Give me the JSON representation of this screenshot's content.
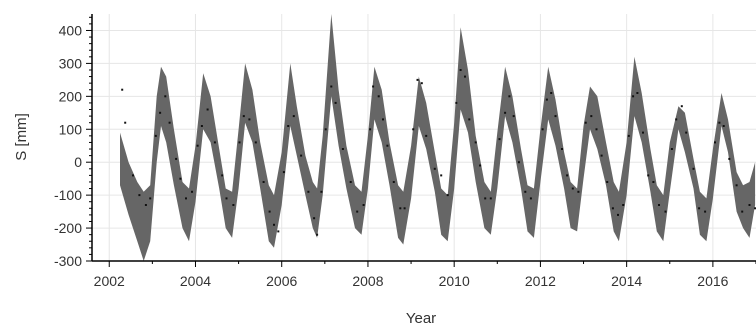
{
  "chart_data": {
    "type": "area",
    "xlabel": "Year",
    "ylabel": "S [mm]",
    "xlim": [
      2001.6,
      2017.0
    ],
    "ylim": [
      -300,
      450
    ],
    "x_ticks": [
      2002,
      2004,
      2006,
      2008,
      2010,
      2012,
      2014,
      2016
    ],
    "x_tick_labels": [
      "2002",
      "2004",
      "2006",
      "2008",
      "2010",
      "2012",
      "2014",
      "2016"
    ],
    "y_ticks": [
      -300,
      -200,
      -100,
      0,
      100,
      200,
      300,
      400
    ],
    "y_tick_labels": [
      "-300",
      "-200",
      "-100",
      "0",
      "100",
      "200",
      "300",
      "400"
    ],
    "grid": true,
    "colors": {
      "band": "#666666",
      "points": "#111111",
      "grid": "#e6e6e6",
      "axis": "#000000"
    },
    "band": [
      {
        "x": 2002.25,
        "low": -70,
        "high": 90
      },
      {
        "x": 2002.45,
        "low": -160,
        "high": 0
      },
      {
        "x": 2002.65,
        "low": -240,
        "high": -60
      },
      {
        "x": 2002.8,
        "low": -300,
        "high": -90
      },
      {
        "x": 2002.95,
        "low": -240,
        "high": -70
      },
      {
        "x": 2003.1,
        "low": 0,
        "high": 200
      },
      {
        "x": 2003.2,
        "low": 110,
        "high": 290
      },
      {
        "x": 2003.32,
        "low": 60,
        "high": 260
      },
      {
        "x": 2003.5,
        "low": -70,
        "high": 100
      },
      {
        "x": 2003.7,
        "low": -200,
        "high": -60
      },
      {
        "x": 2003.85,
        "low": -240,
        "high": -80
      },
      {
        "x": 2004.0,
        "low": -120,
        "high": 50
      },
      {
        "x": 2004.18,
        "low": 100,
        "high": 270
      },
      {
        "x": 2004.35,
        "low": 60,
        "high": 200
      },
      {
        "x": 2004.55,
        "low": -80,
        "high": 40
      },
      {
        "x": 2004.7,
        "low": -200,
        "high": -80
      },
      {
        "x": 2004.85,
        "low": -230,
        "high": -90
      },
      {
        "x": 2005.0,
        "low": -80,
        "high": 100
      },
      {
        "x": 2005.15,
        "low": 120,
        "high": 300
      },
      {
        "x": 2005.32,
        "low": 60,
        "high": 220
      },
      {
        "x": 2005.5,
        "low": -80,
        "high": 60
      },
      {
        "x": 2005.7,
        "low": -240,
        "high": -70
      },
      {
        "x": 2005.82,
        "low": -260,
        "high": -100
      },
      {
        "x": 2006.0,
        "low": -130,
        "high": 30
      },
      {
        "x": 2006.2,
        "low": 110,
        "high": 300
      },
      {
        "x": 2006.35,
        "low": 20,
        "high": 170
      },
      {
        "x": 2006.55,
        "low": -100,
        "high": 20
      },
      {
        "x": 2006.72,
        "low": -200,
        "high": -60
      },
      {
        "x": 2006.82,
        "low": -230,
        "high": -80
      },
      {
        "x": 2006.95,
        "low": -100,
        "high": 80
      },
      {
        "x": 2007.15,
        "low": 200,
        "high": 450
      },
      {
        "x": 2007.32,
        "low": 50,
        "high": 220
      },
      {
        "x": 2007.5,
        "low": -80,
        "high": 50
      },
      {
        "x": 2007.7,
        "low": -200,
        "high": -70
      },
      {
        "x": 2007.85,
        "low": -220,
        "high": -90
      },
      {
        "x": 2008.0,
        "low": -80,
        "high": 80
      },
      {
        "x": 2008.15,
        "low": 130,
        "high": 290
      },
      {
        "x": 2008.32,
        "low": 60,
        "high": 220
      },
      {
        "x": 2008.5,
        "low": -70,
        "high": 60
      },
      {
        "x": 2008.7,
        "low": -230,
        "high": -70
      },
      {
        "x": 2008.82,
        "low": -250,
        "high": -90
      },
      {
        "x": 2009.0,
        "low": -110,
        "high": 50
      },
      {
        "x": 2009.18,
        "low": 110,
        "high": 260
      },
      {
        "x": 2009.35,
        "low": 40,
        "high": 180
      },
      {
        "x": 2009.55,
        "low": -90,
        "high": 30
      },
      {
        "x": 2009.7,
        "low": -220,
        "high": -80
      },
      {
        "x": 2009.85,
        "low": -240,
        "high": -100
      },
      {
        "x": 2010.0,
        "low": -80,
        "high": 120
      },
      {
        "x": 2010.15,
        "low": 160,
        "high": 410
      },
      {
        "x": 2010.32,
        "low": 90,
        "high": 280
      },
      {
        "x": 2010.5,
        "low": -60,
        "high": 80
      },
      {
        "x": 2010.7,
        "low": -200,
        "high": -60
      },
      {
        "x": 2010.85,
        "low": -220,
        "high": -90
      },
      {
        "x": 2011.0,
        "low": -80,
        "high": 90
      },
      {
        "x": 2011.18,
        "low": 140,
        "high": 290
      },
      {
        "x": 2011.35,
        "low": 60,
        "high": 200
      },
      {
        "x": 2011.55,
        "low": -80,
        "high": 40
      },
      {
        "x": 2011.7,
        "low": -210,
        "high": -70
      },
      {
        "x": 2011.85,
        "low": -230,
        "high": -80
      },
      {
        "x": 2012.0,
        "low": -60,
        "high": 100
      },
      {
        "x": 2012.18,
        "low": 130,
        "high": 290
      },
      {
        "x": 2012.35,
        "low": 50,
        "high": 190
      },
      {
        "x": 2012.55,
        "low": -80,
        "high": 30
      },
      {
        "x": 2012.7,
        "low": -200,
        "high": -60
      },
      {
        "x": 2012.85,
        "low": -210,
        "high": -80
      },
      {
        "x": 2013.0,
        "low": -50,
        "high": 110
      },
      {
        "x": 2013.15,
        "low": 100,
        "high": 230
      },
      {
        "x": 2013.32,
        "low": 40,
        "high": 200
      },
      {
        "x": 2013.52,
        "low": -70,
        "high": 60
      },
      {
        "x": 2013.7,
        "low": -210,
        "high": -60
      },
      {
        "x": 2013.82,
        "low": -240,
        "high": -90
      },
      {
        "x": 2014.0,
        "low": -100,
        "high": 60
      },
      {
        "x": 2014.18,
        "low": 140,
        "high": 320
      },
      {
        "x": 2014.35,
        "low": 60,
        "high": 210
      },
      {
        "x": 2014.55,
        "low": -90,
        "high": 40
      },
      {
        "x": 2014.7,
        "low": -210,
        "high": -70
      },
      {
        "x": 2014.85,
        "low": -240,
        "high": -100
      },
      {
        "x": 2015.0,
        "low": -90,
        "high": 60
      },
      {
        "x": 2015.2,
        "low": 100,
        "high": 170
      },
      {
        "x": 2015.35,
        "low": 30,
        "high": 150
      },
      {
        "x": 2015.55,
        "low": -80,
        "high": 10
      },
      {
        "x": 2015.7,
        "low": -220,
        "high": -90
      },
      {
        "x": 2015.85,
        "low": -240,
        "high": -110
      },
      {
        "x": 2016.0,
        "low": -110,
        "high": 40
      },
      {
        "x": 2016.2,
        "low": 110,
        "high": 210
      },
      {
        "x": 2016.35,
        "low": 30,
        "high": 130
      },
      {
        "x": 2016.55,
        "low": -150,
        "high": -30
      },
      {
        "x": 2016.7,
        "low": -200,
        "high": -70
      },
      {
        "x": 2016.85,
        "low": -230,
        "high": -60
      },
      {
        "x": 2016.98,
        "low": -130,
        "high": 0
      }
    ],
    "points": [
      {
        "x": 2002.3,
        "y": 220
      },
      {
        "x": 2002.37,
        "y": 120
      },
      {
        "x": 2002.55,
        "y": -40
      },
      {
        "x": 2002.7,
        "y": -100
      },
      {
        "x": 2002.85,
        "y": -130
      },
      {
        "x": 2002.95,
        "y": -110
      },
      {
        "x": 2003.08,
        "y": 80
      },
      {
        "x": 2003.18,
        "y": 150
      },
      {
        "x": 2003.3,
        "y": 200
      },
      {
        "x": 2003.4,
        "y": 120
      },
      {
        "x": 2003.55,
        "y": 10
      },
      {
        "x": 2003.65,
        "y": -50
      },
      {
        "x": 2003.78,
        "y": -110
      },
      {
        "x": 2003.92,
        "y": -90
      },
      {
        "x": 2004.05,
        "y": 50
      },
      {
        "x": 2004.15,
        "y": 110
      },
      {
        "x": 2004.28,
        "y": 160
      },
      {
        "x": 2004.45,
        "y": 60
      },
      {
        "x": 2004.62,
        "y": -40
      },
      {
        "x": 2004.72,
        "y": -110
      },
      {
        "x": 2004.88,
        "y": -130
      },
      {
        "x": 2005.02,
        "y": 60
      },
      {
        "x": 2005.12,
        "y": 140
      },
      {
        "x": 2005.25,
        "y": 130
      },
      {
        "x": 2005.4,
        "y": 60
      },
      {
        "x": 2005.58,
        "y": -60
      },
      {
        "x": 2005.72,
        "y": -150
      },
      {
        "x": 2005.82,
        "y": -190
      },
      {
        "x": 2005.92,
        "y": -210
      },
      {
        "x": 2006.05,
        "y": -30
      },
      {
        "x": 2006.15,
        "y": 110
      },
      {
        "x": 2006.28,
        "y": 140
      },
      {
        "x": 2006.45,
        "y": 20
      },
      {
        "x": 2006.62,
        "y": -90
      },
      {
        "x": 2006.75,
        "y": -170
      },
      {
        "x": 2006.82,
        "y": -220
      },
      {
        "x": 2006.92,
        "y": -90
      },
      {
        "x": 2007.02,
        "y": 100
      },
      {
        "x": 2007.15,
        "y": 230
      },
      {
        "x": 2007.25,
        "y": 180
      },
      {
        "x": 2007.42,
        "y": 40
      },
      {
        "x": 2007.6,
        "y": -60
      },
      {
        "x": 2007.75,
        "y": -150
      },
      {
        "x": 2007.9,
        "y": -130
      },
      {
        "x": 2008.05,
        "y": 100
      },
      {
        "x": 2008.12,
        "y": 230
      },
      {
        "x": 2008.25,
        "y": 200
      },
      {
        "x": 2008.35,
        "y": 130
      },
      {
        "x": 2008.45,
        "y": 50
      },
      {
        "x": 2008.6,
        "y": -60
      },
      {
        "x": 2008.75,
        "y": -140
      },
      {
        "x": 2008.85,
        "y": -140
      },
      {
        "x": 2009.05,
        "y": 100
      },
      {
        "x": 2009.15,
        "y": 250
      },
      {
        "x": 2009.25,
        "y": 240
      },
      {
        "x": 2009.35,
        "y": 80
      },
      {
        "x": 2009.55,
        "y": -20
      },
      {
        "x": 2009.7,
        "y": -40
      },
      {
        "x": 2009.85,
        "y": -100
      },
      {
        "x": 2010.05,
        "y": 180
      },
      {
        "x": 2010.15,
        "y": 280
      },
      {
        "x": 2010.25,
        "y": 260
      },
      {
        "x": 2010.35,
        "y": 130
      },
      {
        "x": 2010.5,
        "y": 60
      },
      {
        "x": 2010.6,
        "y": -10
      },
      {
        "x": 2010.72,
        "y": -110
      },
      {
        "x": 2010.85,
        "y": -110
      },
      {
        "x": 2011.05,
        "y": 70
      },
      {
        "x": 2011.18,
        "y": 150
      },
      {
        "x": 2011.28,
        "y": 200
      },
      {
        "x": 2011.38,
        "y": 140
      },
      {
        "x": 2011.5,
        "y": 0
      },
      {
        "x": 2011.65,
        "y": -90
      },
      {
        "x": 2011.78,
        "y": -110
      },
      {
        "x": 2012.05,
        "y": 100
      },
      {
        "x": 2012.15,
        "y": 190
      },
      {
        "x": 2012.25,
        "y": 210
      },
      {
        "x": 2012.35,
        "y": 140
      },
      {
        "x": 2012.5,
        "y": 40
      },
      {
        "x": 2012.62,
        "y": -40
      },
      {
        "x": 2012.75,
        "y": -80
      },
      {
        "x": 2012.88,
        "y": -90
      },
      {
        "x": 2013.05,
        "y": 120
      },
      {
        "x": 2013.18,
        "y": 140
      },
      {
        "x": 2013.3,
        "y": 100
      },
      {
        "x": 2013.42,
        "y": 20
      },
      {
        "x": 2013.55,
        "y": -60
      },
      {
        "x": 2013.68,
        "y": -140
      },
      {
        "x": 2013.8,
        "y": -160
      },
      {
        "x": 2013.92,
        "y": -130
      },
      {
        "x": 2014.05,
        "y": 80
      },
      {
        "x": 2014.15,
        "y": 200
      },
      {
        "x": 2014.25,
        "y": 210
      },
      {
        "x": 2014.38,
        "y": 90
      },
      {
        "x": 2014.5,
        "y": -40
      },
      {
        "x": 2014.62,
        "y": -60
      },
      {
        "x": 2014.75,
        "y": -130
      },
      {
        "x": 2014.9,
        "y": -150
      },
      {
        "x": 2015.05,
        "y": 40
      },
      {
        "x": 2015.15,
        "y": 130
      },
      {
        "x": 2015.28,
        "y": 170
      },
      {
        "x": 2015.38,
        "y": 90
      },
      {
        "x": 2015.55,
        "y": -20
      },
      {
        "x": 2015.68,
        "y": -140
      },
      {
        "x": 2015.82,
        "y": -150
      },
      {
        "x": 2016.05,
        "y": 60
      },
      {
        "x": 2016.15,
        "y": 120
      },
      {
        "x": 2016.25,
        "y": 110
      },
      {
        "x": 2016.38,
        "y": 10
      },
      {
        "x": 2016.55,
        "y": -70
      },
      {
        "x": 2016.68,
        "y": -150
      },
      {
        "x": 2016.85,
        "y": -130
      },
      {
        "x": 2016.98,
        "y": -140
      }
    ]
  }
}
